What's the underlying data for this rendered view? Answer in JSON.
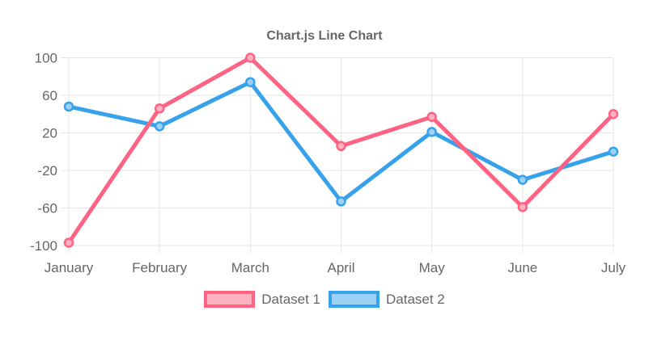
{
  "chart_data": {
    "type": "line",
    "title": "Chart.js Line Chart",
    "categories": [
      "January",
      "February",
      "March",
      "April",
      "May",
      "June",
      "July"
    ],
    "series": [
      {
        "name": "Dataset 1",
        "values": [
          -97,
          46,
          100,
          6,
          37,
          -59,
          40
        ],
        "color": "#ff6384",
        "fill_color": "#ffb1c2"
      },
      {
        "name": "Dataset 2",
        "values": [
          48,
          27,
          74,
          -53,
          21,
          -30,
          0
        ],
        "color": "#36a2eb",
        "fill_color": "#9bd1f5"
      }
    ],
    "xlabel": "",
    "ylabel": "",
    "ylim": [
      -100,
      100
    ],
    "yticks": [
      100,
      60,
      20,
      -20,
      -60,
      -100
    ],
    "grid": true,
    "grid_color": "#e6e6e6",
    "text_color": "#666666",
    "background_color": "#ffffff",
    "legend_position": "bottom"
  }
}
